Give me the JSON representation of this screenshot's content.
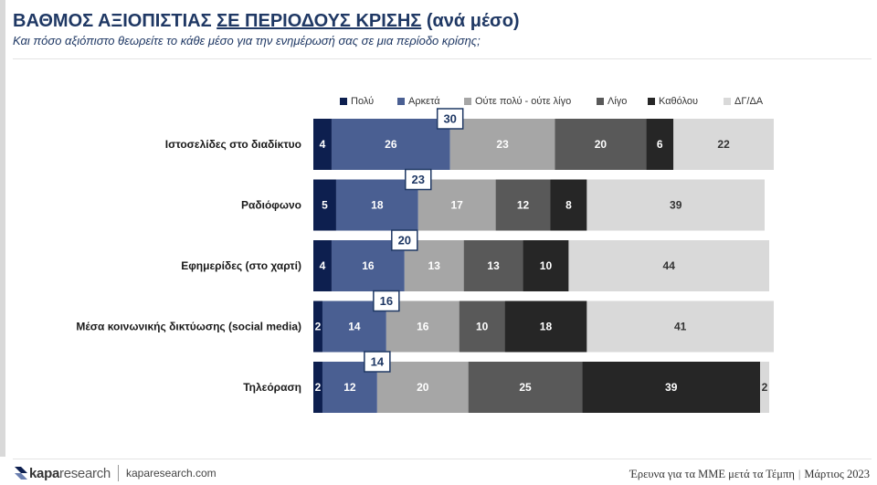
{
  "header": {
    "title_main": "ΒΑΘΜΟΣ ΑΞΙΟΠΙΣΤΙΑΣ ",
    "title_underlined": "ΣΕ ΠΕΡΙΟΔΟΥΣ ΚΡΙΣΗΣ",
    "title_suffix": " (ανά μέσο)",
    "subtitle": "Και πόσο αξιόπιστο θεωρείτε το κάθε μέσο για την ενημέρωσή σας σε μια περίοδο κρίσης;"
  },
  "chart_data": {
    "type": "bar",
    "orientation": "horizontal",
    "stacked": true,
    "categories": [
      "Ιστοσελίδες στο διαδίκτυο",
      "Ραδιόφωνο",
      "Εφημερίδες (στο χαρτί)",
      "Μέσα κοινωνικής δικτύωσης (social media)",
      "Τηλεόραση"
    ],
    "series": [
      {
        "name": "Πολύ",
        "color": "#0d1f4f",
        "values": [
          4,
          5,
          4,
          2,
          2
        ]
      },
      {
        "name": "Αρκετά",
        "color": "#4a5f92",
        "values": [
          26,
          18,
          16,
          14,
          12
        ]
      },
      {
        "name": "Ούτε πολύ - ούτε λίγο",
        "color": "#a6a6a6",
        "values": [
          23,
          17,
          13,
          16,
          20
        ]
      },
      {
        "name": "Λίγο",
        "color": "#595959",
        "values": [
          20,
          12,
          13,
          10,
          25
        ]
      },
      {
        "name": "Καθόλου",
        "color": "#262626",
        "values": [
          6,
          8,
          10,
          18,
          39
        ]
      },
      {
        "name": "ΔΓ/ΔΑ",
        "color": "#d9d9d9",
        "values": [
          22,
          39,
          44,
          41,
          2
        ]
      }
    ],
    "callouts": [
      30,
      23,
      20,
      16,
      14
    ],
    "xlim": [
      0,
      100
    ],
    "legend": "top"
  },
  "footer": {
    "brand_bold": "kapa",
    "brand_light": "research",
    "url": "kaparesearch.com",
    "source": "Έρευνα για τα ΜΜΕ μετά τα Τέμπη",
    "pipe": "|",
    "date": "Μάρτιος 2023"
  }
}
